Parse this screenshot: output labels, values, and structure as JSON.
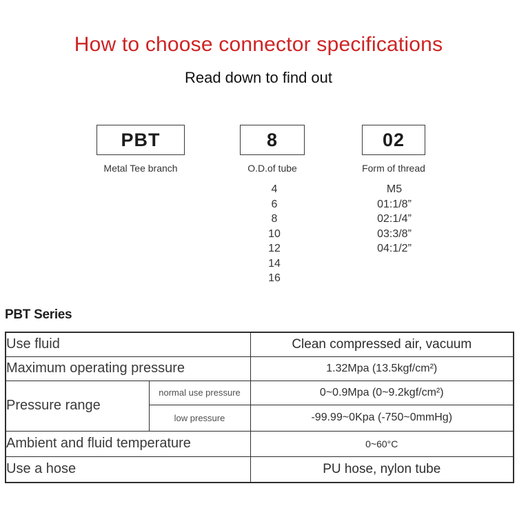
{
  "page": {
    "title": "How to choose connector specifications",
    "subtitle": "Read down to find out"
  },
  "colors": {
    "accent_red": "#ce2424",
    "table_beige": "#f2ebdc",
    "border_dark": "#2e2e2e"
  },
  "selector": {
    "boxes": [
      {
        "code": "PBT",
        "label": "Metal Tee branch"
      },
      {
        "code": "8",
        "label": "O.D.of tube"
      },
      {
        "code": "02",
        "label": "Form of thread"
      }
    ],
    "tube_od_options": [
      "4",
      "6",
      "8",
      "10",
      "12",
      "14",
      "16"
    ],
    "thread_options": [
      "M5",
      "01:1/8”",
      "02:1/4”",
      "03:3/8”",
      "04:1/2”"
    ]
  },
  "series": {
    "heading": "PBT Series",
    "table": {
      "rows": {
        "use_fluid": {
          "label": "Use fluid",
          "value": "Clean compressed air, vacuum"
        },
        "max_pressure": {
          "label": "Maximum operating pressure",
          "value": "1.32Mpa (13.5kgf/cm²)"
        },
        "pressure_range": {
          "label": "Pressure range",
          "sub_rows": [
            {
              "label": "normal use pressure",
              "value": "0~0.9Mpa (0~9.2kgf/cm²)"
            },
            {
              "label": "low pressure",
              "value": "-99.99~0Kpa (-750~0mmHg)"
            }
          ]
        },
        "temperature": {
          "label": "Ambient and fluid temperature",
          "value": "0~60°C"
        },
        "hose": {
          "label": "Use a hose",
          "value": "PU hose, nylon tube"
        }
      }
    }
  }
}
